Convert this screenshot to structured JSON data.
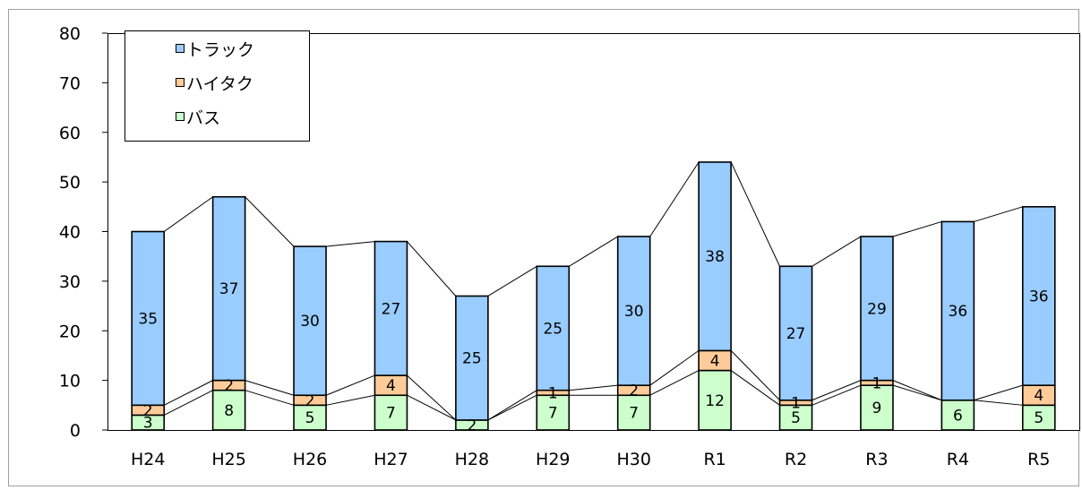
{
  "chart_data": {
    "type": "bar",
    "stacked": true,
    "title": "",
    "xlabel": "",
    "ylabel": "",
    "ylim": [
      0,
      80
    ],
    "yticks": [
      0,
      10,
      20,
      30,
      40,
      50,
      60,
      70,
      80
    ],
    "categories": [
      "H24",
      "H25",
      "H26",
      "H27",
      "H28",
      "H29",
      "H30",
      "R1",
      "R2",
      "R3",
      "R4",
      "R5"
    ],
    "series": [
      {
        "name": "バス",
        "color": "#ccffcc",
        "values": [
          3,
          8,
          5,
          7,
          2,
          7,
          7,
          12,
          5,
          9,
          6,
          5
        ],
        "labels": [
          "3",
          "8",
          "5",
          "7",
          "2",
          "7",
          "7",
          "12",
          "5",
          "9",
          "6",
          "5"
        ]
      },
      {
        "name": "ハイタク",
        "color": "#ffcc99",
        "values": [
          2,
          2,
          2,
          4,
          0,
          1,
          2,
          4,
          1,
          1,
          0,
          4
        ],
        "labels": [
          "2",
          "2",
          "2",
          "4",
          "",
          "1",
          "2",
          "4",
          "1",
          "1",
          "",
          "4"
        ]
      },
      {
        "name": "トラック",
        "color": "#99ccff",
        "values": [
          35,
          37,
          30,
          27,
          25,
          25,
          30,
          38,
          27,
          29,
          36,
          36
        ],
        "labels": [
          "35",
          "37",
          "30",
          "27",
          "25",
          "25",
          "30",
          "38",
          "27",
          "29",
          "36",
          "36"
        ]
      }
    ],
    "legend_order": [
      "トラック",
      "ハイタク",
      "バス"
    ],
    "legend_position": "top-left",
    "series_lines": true,
    "grid": false
  }
}
